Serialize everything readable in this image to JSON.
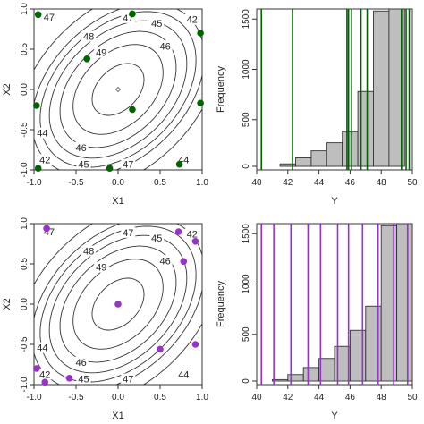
{
  "chart_data": [
    {
      "type": "contour",
      "panel": "top-left",
      "xlabel": "X1",
      "ylabel": "X2",
      "xlim": [
        -1,
        1
      ],
      "ylim": [
        -1,
        1
      ],
      "x_ticks": [
        "-1.0",
        "-0.5",
        "0.0",
        "0.5",
        "1.0"
      ],
      "y_ticks": [
        "-1.0",
        "-0.5",
        "0.0",
        "0.5",
        "1.0"
      ],
      "contour_levels": [
        42,
        44,
        45,
        46,
        47,
        48,
        49
      ],
      "contour_labels": [
        {
          "text": "47",
          "x": -0.82,
          "y": 0.9
        },
        {
          "text": "47",
          "x": 0.12,
          "y": 0.89
        },
        {
          "text": "48",
          "x": -0.35,
          "y": 0.66
        },
        {
          "text": "49",
          "x": -0.2,
          "y": 0.46
        },
        {
          "text": "45",
          "x": 0.46,
          "y": 0.82
        },
        {
          "text": "46",
          "x": 0.56,
          "y": 0.54
        },
        {
          "text": "42",
          "x": 0.88,
          "y": 0.87
        },
        {
          "text": "44",
          "x": -0.9,
          "y": -0.54
        },
        {
          "text": "46",
          "x": -0.44,
          "y": -0.72
        },
        {
          "text": "42",
          "x": -0.87,
          "y": -0.87
        },
        {
          "text": "45",
          "x": -0.41,
          "y": -0.93
        },
        {
          "text": "47",
          "x": 0.12,
          "y": -0.93
        },
        {
          "text": "44",
          "x": 0.78,
          "y": -0.87
        }
      ],
      "center_marker": {
        "x": 0.0,
        "y": 0.0,
        "shape": "diamond-open"
      },
      "points_color": "#006400",
      "points": [
        {
          "x": -0.95,
          "y": 0.93
        },
        {
          "x": 0.17,
          "y": 0.94
        },
        {
          "x": 0.98,
          "y": 0.7
        },
        {
          "x": -0.37,
          "y": 0.38
        },
        {
          "x": -0.97,
          "y": -0.2
        },
        {
          "x": 0.17,
          "y": -0.25
        },
        {
          "x": 0.98,
          "y": -0.17
        },
        {
          "x": -0.95,
          "y": -0.98
        },
        {
          "x": -0.1,
          "y": -0.98
        },
        {
          "x": 0.73,
          "y": -0.93
        }
      ]
    },
    {
      "type": "histogram",
      "panel": "top-right",
      "xlabel": "Y",
      "ylabel": "Frequency",
      "xlim": [
        40,
        50
      ],
      "ylim": [
        0,
        1600
      ],
      "x_ticks": [
        "40",
        "42",
        "44",
        "46",
        "48",
        "50"
      ],
      "y_ticks": [
        "0",
        "500",
        "1000",
        "1500"
      ],
      "bin_edges": [
        40.5,
        41.5,
        42.5,
        43.5,
        44.5,
        45.5,
        46.5,
        47.5,
        48.5,
        49.5
      ],
      "frequencies": [
        20,
        60,
        120,
        190,
        270,
        380,
        780,
        1580,
        1600
      ],
      "vline_color": "#006400",
      "vlines": [
        40.3,
        42.3,
        45.8,
        45.9,
        46.1,
        46.7,
        47.1,
        49.3,
        49.6,
        49.8
      ]
    },
    {
      "type": "contour",
      "panel": "bottom-left",
      "xlabel": "X1",
      "ylabel": "X2",
      "xlim": [
        -1,
        1
      ],
      "ylim": [
        -1,
        1
      ],
      "x_ticks": [
        "-1.0",
        "-0.5",
        "0.0",
        "0.5",
        "1.0"
      ],
      "y_ticks": [
        "-1.0",
        "-0.5",
        "0.0",
        "0.5",
        "1.0"
      ],
      "contour_levels": [
        42,
        44,
        45,
        46,
        47,
        48,
        49
      ],
      "contour_labels": [
        {
          "text": "47",
          "x": -0.82,
          "y": 0.9
        },
        {
          "text": "47",
          "x": 0.12,
          "y": 0.89
        },
        {
          "text": "48",
          "x": -0.35,
          "y": 0.66
        },
        {
          "text": "49",
          "x": -0.2,
          "y": 0.46
        },
        {
          "text": "45",
          "x": 0.46,
          "y": 0.82
        },
        {
          "text": "46",
          "x": 0.56,
          "y": 0.54
        },
        {
          "text": "42",
          "x": 0.88,
          "y": 0.87
        },
        {
          "text": "44",
          "x": -0.9,
          "y": -0.54
        },
        {
          "text": "46",
          "x": -0.44,
          "y": -0.72
        },
        {
          "text": "42",
          "x": -0.87,
          "y": -0.87
        },
        {
          "text": "45",
          "x": -0.41,
          "y": -0.93
        },
        {
          "text": "47",
          "x": 0.12,
          "y": -0.93
        },
        {
          "text": "44",
          "x": 0.78,
          "y": -0.87
        }
      ],
      "points_color": "#9932CC",
      "points": [
        {
          "x": -0.85,
          "y": 0.94
        },
        {
          "x": 0.72,
          "y": 0.9
        },
        {
          "x": 0.92,
          "y": 0.78
        },
        {
          "x": 0.78,
          "y": 0.53
        },
        {
          "x": 0.0,
          "y": 0.0
        },
        {
          "x": 0.5,
          "y": -0.56
        },
        {
          "x": 0.92,
          "y": -0.5
        },
        {
          "x": -0.97,
          "y": -0.8
        },
        {
          "x": -0.87,
          "y": -0.97
        },
        {
          "x": -0.58,
          "y": -0.92
        }
      ]
    },
    {
      "type": "histogram",
      "panel": "bottom-right",
      "xlabel": "Y",
      "ylabel": "Frequency",
      "xlim": [
        40,
        50
      ],
      "ylim": [
        0,
        1600
      ],
      "x_ticks": [
        "40",
        "42",
        "44",
        "46",
        "48",
        "50"
      ],
      "y_ticks": [
        "0",
        "500",
        "1000",
        "1500"
      ],
      "bin_edges": [
        40.0,
        41.0,
        42.0,
        43.0,
        44.0,
        45.0,
        46.0,
        47.0,
        48.0,
        49.0,
        50.0
      ],
      "frequencies": [
        20,
        50,
        100,
        170,
        260,
        380,
        540,
        780,
        1580,
        1600
      ],
      "vline_color": "#9932CC",
      "vlines": [
        40.3,
        41.1,
        42.2,
        43.3,
        44.1,
        45.2,
        45.9,
        46.8,
        47.8,
        48.8,
        49.7
      ]
    }
  ]
}
